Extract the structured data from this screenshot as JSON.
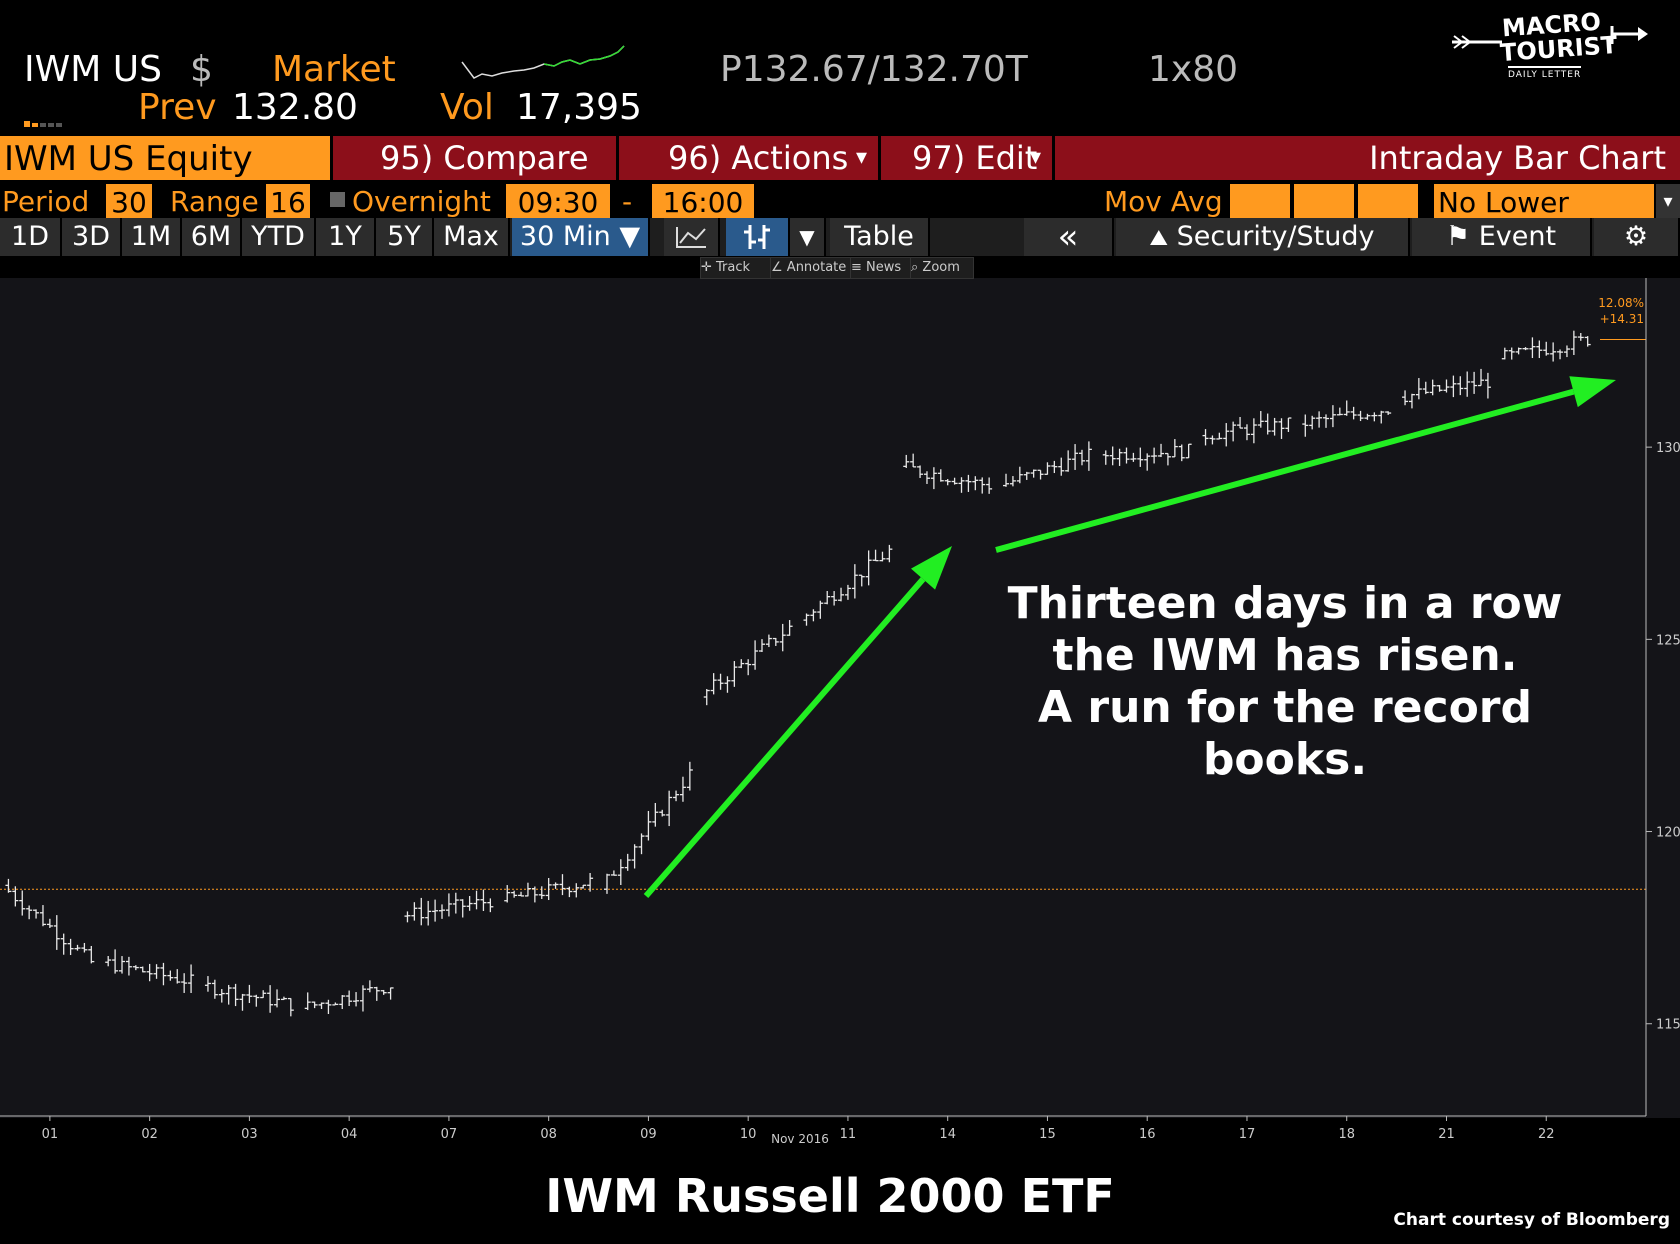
{
  "header": {
    "ticker": "IWM US",
    "currency": "$",
    "market_label": "Market",
    "quote": "P132.67/132.70T",
    "size": "1x80",
    "prev_label": "Prev",
    "prev_value": "132.80",
    "vol_label": "Vol",
    "vol_value": "17,395"
  },
  "logo": {
    "line1": "MACRO",
    "line2": "TOURIST",
    "line3": "DAILY LETTER"
  },
  "toolbar": {
    "equity": "IWM US Equity",
    "compare": "95) Compare",
    "actions": "96) Actions",
    "edit": "97) Edit",
    "chart_type": "Intraday Bar Chart"
  },
  "settings": {
    "period_label": "Period",
    "period_value": "30",
    "range_label": "Range",
    "range_value": "16",
    "overnight_label": "Overnight",
    "start_time": "09:30",
    "dash": "-",
    "end_time": "16:00",
    "mov_avg_label": "Mov Avg",
    "lower_chart": "No Lower Chart"
  },
  "ranges": [
    "1D",
    "3D",
    "1M",
    "6M",
    "YTD",
    "1Y",
    "5Y",
    "Max"
  ],
  "interval": "30 Min ▼",
  "table_label": "Table",
  "back_label": "«",
  "security_study": "Security/Study",
  "event_label": "Event",
  "chart_tools": [
    "Track",
    "Annotate",
    "News",
    "Zoom"
  ],
  "colors": {
    "orange": "#ff9a1f",
    "red_bar": "#8c0f1a",
    "arrow": "#22ee22",
    "background": "#141418"
  },
  "chart_data": {
    "type": "bar",
    "title": "IWM Russell 2000 ETF",
    "credit": "Chart courtesy of Bloomberg",
    "annotation": [
      "Thirteen days in a row",
      "the IWM has risen.",
      "A run for the record",
      "books."
    ],
    "x_ticks": [
      "01",
      "02",
      "03",
      "04",
      "07",
      "08",
      "09",
      "10",
      "11",
      "14",
      "15",
      "16",
      "17",
      "18",
      "21",
      "22"
    ],
    "x_month_label": "Nov 2016",
    "y_ticks": [
      115,
      120,
      125,
      130
    ],
    "ylim": [
      112.6,
      134.4
    ],
    "reference_line": 118.5,
    "last_value_labels": [
      "12.08%",
      "+14.31"
    ],
    "daily_closes": [
      {
        "day": "01",
        "open": 118.6,
        "close": 116.6
      },
      {
        "day": "02",
        "open": 116.6,
        "close": 116.1
      },
      {
        "day": "03",
        "open": 116.0,
        "close": 115.5
      },
      {
        "day": "04",
        "open": 115.4,
        "close": 116.0
      },
      {
        "day": "07",
        "open": 117.8,
        "close": 118.2
      },
      {
        "day": "08",
        "open": 118.2,
        "close": 118.7
      },
      {
        "day": "09",
        "open": 118.5,
        "close": 121.5
      },
      {
        "day": "10",
        "open": 123.5,
        "close": 125.3
      },
      {
        "day": "11",
        "open": 125.5,
        "close": 127.3
      },
      {
        "day": "14",
        "open": 129.5,
        "close": 129.0
      },
      {
        "day": "15",
        "open": 129.0,
        "close": 129.8
      },
      {
        "day": "16",
        "open": 129.8,
        "close": 129.9
      },
      {
        "day": "17",
        "open": 130.3,
        "close": 130.6
      },
      {
        "day": "18",
        "open": 130.6,
        "close": 131.0
      },
      {
        "day": "21",
        "open": 131.3,
        "close": 131.7
      },
      {
        "day": "22",
        "open": 132.3,
        "close": 132.8
      }
    ]
  }
}
